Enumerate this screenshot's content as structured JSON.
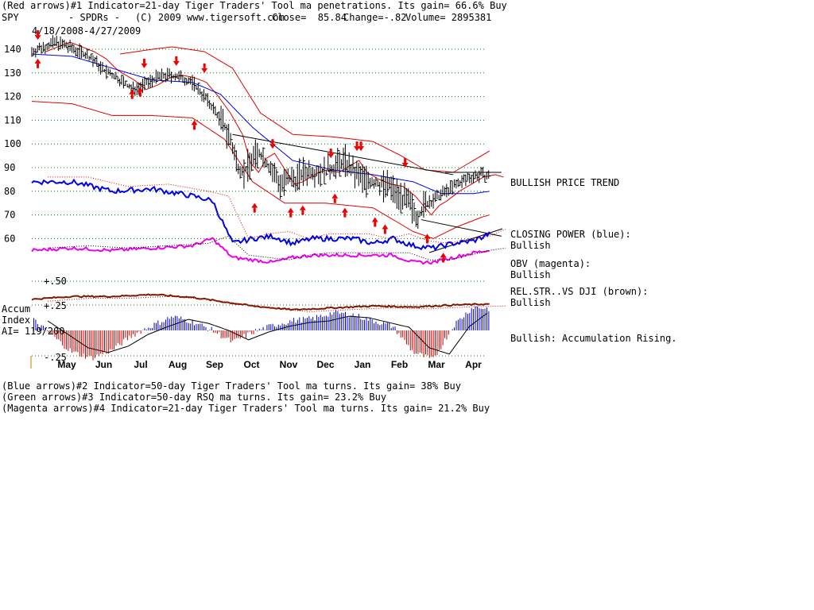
{
  "header": {
    "line1": "(Red arrows)#1 Indicator=21-day Tiger Traders' Tool ma penetrations. Its gain= 66.6% Buy",
    "ticker": "SPY",
    "name": "- SPDRs -",
    "copyright": "(C) 2009 www.tigersoft.com",
    "close": "Close=  85.84",
    "change": "Change=-.82",
    "volume": "Volume= 2895381",
    "date_range": "4/18/2008-4/27/2009"
  },
  "footer": [
    "(Blue arrows)#2 Indicator=50-day Tiger Traders' Tool ma turns. Its gain= 38% Buy",
    "(Green arrows)#3 Indicator=50-day RSQ ma turns. Its gain= 23.2% Buy",
    "(Magenta arrows)#4 Indicator=21-day Tiger Traders' Tool ma turns. Its gain= 21.2% Buy"
  ],
  "right_labels": {
    "trend": "BULLISH PRICE TREND",
    "cp_title": "CLOSING POWER (blue):",
    "cp_value": "Bullish",
    "obv_title": "OBV (magenta):",
    "obv_value": "Bullish",
    "rs_title": "REL.STR..VS DJI (brown):",
    "rs_value": "Bullish",
    "accum": "Bullish: Accumulation Rising."
  },
  "accum_label": {
    "line1": "Accum",
    "line2": "Index",
    "line3": "AI= 119/200"
  },
  "colors": {
    "price_bars": "#000000",
    "bands": "#dd0000",
    "ma50": "#0000dd",
    "closing_power": "#0000ee",
    "obv": "#ee00ee",
    "rel_strength": "#7a1a00",
    "accum_pos": "#0000cc",
    "accum_neg": "#cc0000",
    "grid": "#008000",
    "arrows": "#ee0000"
  },
  "chart_data": {
    "type": "line",
    "y_ticks": [
      140,
      130,
      120,
      110,
      100,
      90,
      80,
      70,
      60
    ],
    "y_range": [
      55,
      145
    ],
    "grid": true,
    "months": [
      "May",
      "Jun",
      "Jul",
      "Aug",
      "Sep",
      "Oct",
      "Nov",
      "Dec",
      "Jan",
      "Feb",
      "Mar",
      "Apr"
    ],
    "accum_ticks": [
      "+.50",
      "+.25",
      "-.25"
    ],
    "close_series": [
      {
        "m": 0.0,
        "v": 139
      },
      {
        "m": 0.3,
        "v": 141
      },
      {
        "m": 0.6,
        "v": 143
      },
      {
        "m": 0.9,
        "v": 141
      },
      {
        "m": 1.2,
        "v": 139
      },
      {
        "m": 1.5,
        "v": 136
      },
      {
        "m": 1.8,
        "v": 131
      },
      {
        "m": 2.2,
        "v": 127
      },
      {
        "m": 2.5,
        "v": 123
      },
      {
        "m": 2.8,
        "v": 125
      },
      {
        "m": 3.1,
        "v": 128
      },
      {
        "m": 3.4,
        "v": 129
      },
      {
        "m": 3.7,
        "v": 128
      },
      {
        "m": 4.0,
        "v": 126
      },
      {
        "m": 4.3,
        "v": 120
      },
      {
        "m": 4.6,
        "v": 113
      },
      {
        "m": 4.9,
        "v": 104
      },
      {
        "m": 5.1,
        "v": 92
      },
      {
        "m": 5.3,
        "v": 88
      },
      {
        "m": 5.5,
        "v": 94
      },
      {
        "m": 5.7,
        "v": 96
      },
      {
        "m": 6.0,
        "v": 88
      },
      {
        "m": 6.2,
        "v": 83
      },
      {
        "m": 6.4,
        "v": 84
      },
      {
        "m": 6.6,
        "v": 86
      },
      {
        "m": 6.8,
        "v": 88
      },
      {
        "m": 7.0,
        "v": 89
      },
      {
        "m": 7.3,
        "v": 88
      },
      {
        "m": 7.6,
        "v": 91
      },
      {
        "m": 7.8,
        "v": 93
      },
      {
        "m": 8.0,
        "v": 88
      },
      {
        "m": 8.3,
        "v": 85
      },
      {
        "m": 8.6,
        "v": 83
      },
      {
        "m": 8.9,
        "v": 82
      },
      {
        "m": 9.2,
        "v": 78
      },
      {
        "m": 9.4,
        "v": 74
      },
      {
        "m": 9.6,
        "v": 70
      },
      {
        "m": 9.8,
        "v": 74
      },
      {
        "m": 10.0,
        "v": 76
      },
      {
        "m": 10.3,
        "v": 80
      },
      {
        "m": 10.6,
        "v": 83
      },
      {
        "m": 10.9,
        "v": 86
      },
      {
        "m": 11.2,
        "v": 87
      },
      {
        "m": 11.4,
        "v": 86
      }
    ],
    "ma50": [
      {
        "m": 0.0,
        "v": 138
      },
      {
        "m": 1.0,
        "v": 137
      },
      {
        "m": 2.0,
        "v": 132
      },
      {
        "m": 3.0,
        "v": 127
      },
      {
        "m": 4.0,
        "v": 126
      },
      {
        "m": 4.7,
        "v": 121
      },
      {
        "m": 5.5,
        "v": 107
      },
      {
        "m": 6.5,
        "v": 93
      },
      {
        "m": 7.5,
        "v": 89
      },
      {
        "m": 8.5,
        "v": 87
      },
      {
        "m": 9.5,
        "v": 84
      },
      {
        "m": 10.2,
        "v": 79
      },
      {
        "m": 11.0,
        "v": 79
      },
      {
        "m": 11.4,
        "v": 80
      }
    ],
    "upper_band": [
      {
        "m": 2.2,
        "v": 138
      },
      {
        "m": 3.0,
        "v": 140
      },
      {
        "m": 3.5,
        "v": 141
      },
      {
        "m": 4.3,
        "v": 139
      },
      {
        "m": 5.0,
        "v": 132
      },
      {
        "m": 5.7,
        "v": 113
      },
      {
        "m": 6.5,
        "v": 104
      },
      {
        "m": 7.5,
        "v": 103
      },
      {
        "m": 8.5,
        "v": 101
      },
      {
        "m": 9.2,
        "v": 95
      },
      {
        "m": 9.8,
        "v": 89
      },
      {
        "m": 10.5,
        "v": 88
      },
      {
        "m": 11.0,
        "v": 93
      },
      {
        "m": 11.4,
        "v": 97
      }
    ],
    "lower_band": [
      {
        "m": 0.0,
        "v": 118
      },
      {
        "m": 1.0,
        "v": 117
      },
      {
        "m": 2.0,
        "v": 112
      },
      {
        "m": 3.0,
        "v": 112
      },
      {
        "m": 4.0,
        "v": 111
      },
      {
        "m": 4.8,
        "v": 102
      },
      {
        "m": 5.5,
        "v": 84
      },
      {
        "m": 6.3,
        "v": 75
      },
      {
        "m": 7.3,
        "v": 75
      },
      {
        "m": 8.5,
        "v": 73
      },
      {
        "m": 9.5,
        "v": 63
      },
      {
        "m": 10.0,
        "v": 60
      },
      {
        "m": 10.6,
        "v": 65
      },
      {
        "m": 11.2,
        "v": 69
      },
      {
        "m": 11.4,
        "v": 70
      }
    ],
    "trendline": [
      {
        "m": 5.0,
        "v": 104
      },
      {
        "m": 10.5,
        "v": 87
      }
    ],
    "support_line": [
      {
        "m": 9.7,
        "v": 68
      },
      {
        "m": 11.7,
        "v": 61
      }
    ],
    "resistance_line": [
      {
        "m": 10.3,
        "v": 88
      },
      {
        "m": 11.7,
        "v": 88
      }
    ],
    "closing_power": [
      {
        "m": 0.0,
        "v": 84
      },
      {
        "m": 1.0,
        "v": 84
      },
      {
        "m": 2.0,
        "v": 80
      },
      {
        "m": 3.0,
        "v": 81
      },
      {
        "m": 4.0,
        "v": 78
      },
      {
        "m": 4.5,
        "v": 76
      },
      {
        "m": 5.0,
        "v": 58
      },
      {
        "m": 5.5,
        "v": 60
      },
      {
        "m": 6.0,
        "v": 61
      },
      {
        "m": 6.5,
        "v": 58
      },
      {
        "m": 7.0,
        "v": 60
      },
      {
        "m": 7.5,
        "v": 60
      },
      {
        "m": 8.0,
        "v": 60
      },
      {
        "m": 8.5,
        "v": 58
      },
      {
        "m": 9.0,
        "v": 60
      },
      {
        "m": 9.5,
        "v": 57
      },
      {
        "m": 10.0,
        "v": 56
      },
      {
        "m": 10.5,
        "v": 58
      },
      {
        "m": 11.0,
        "v": 59
      },
      {
        "m": 11.4,
        "v": 62
      }
    ],
    "obv": [
      {
        "m": 0.0,
        "v": 55
      },
      {
        "m": 1.0,
        "v": 56
      },
      {
        "m": 2.0,
        "v": 55
      },
      {
        "m": 3.0,
        "v": 56
      },
      {
        "m": 4.0,
        "v": 57
      },
      {
        "m": 4.5,
        "v": 60
      },
      {
        "m": 5.0,
        "v": 52
      },
      {
        "m": 5.5,
        "v": 51
      },
      {
        "m": 6.0,
        "v": 50
      },
      {
        "m": 6.5,
        "v": 52
      },
      {
        "m": 7.0,
        "v": 53
      },
      {
        "m": 7.5,
        "v": 53
      },
      {
        "m": 8.0,
        "v": 53
      },
      {
        "m": 8.5,
        "v": 53
      },
      {
        "m": 9.0,
        "v": 53
      },
      {
        "m": 9.5,
        "v": 50
      },
      {
        "m": 10.0,
        "v": 50
      },
      {
        "m": 10.5,
        "v": 52
      },
      {
        "m": 11.0,
        "v": 54
      },
      {
        "m": 11.4,
        "v": 55
      }
    ],
    "rel_strength": [
      {
        "m": 0.0,
        "v": 0.31
      },
      {
        "m": 1.0,
        "v": 0.34
      },
      {
        "m": 2.0,
        "v": 0.34
      },
      {
        "m": 3.0,
        "v": 0.36
      },
      {
        "m": 4.0,
        "v": 0.33
      },
      {
        "m": 4.5,
        "v": 0.3
      },
      {
        "m": 5.5,
        "v": 0.24
      },
      {
        "m": 6.5,
        "v": 0.2
      },
      {
        "m": 7.5,
        "v": 0.22
      },
      {
        "m": 8.5,
        "v": 0.24
      },
      {
        "m": 9.5,
        "v": 0.23
      },
      {
        "m": 10.5,
        "v": 0.25
      },
      {
        "m": 11.4,
        "v": 0.26
      }
    ],
    "accum_index": [
      {
        "m": 0.0,
        "v": 0.12
      },
      {
        "m": 0.5,
        "v": -0.05
      },
      {
        "m": 1.0,
        "v": -0.22
      },
      {
        "m": 1.5,
        "v": -0.28
      },
      {
        "m": 2.0,
        "v": -0.2
      },
      {
        "m": 2.5,
        "v": -0.05
      },
      {
        "m": 3.0,
        "v": 0.05
      },
      {
        "m": 3.5,
        "v": 0.14
      },
      {
        "m": 4.0,
        "v": 0.09
      },
      {
        "m": 4.5,
        "v": 0.0
      },
      {
        "m": 5.0,
        "v": -0.12
      },
      {
        "m": 5.5,
        "v": -0.02
      },
      {
        "m": 6.0,
        "v": 0.05
      },
      {
        "m": 6.5,
        "v": 0.1
      },
      {
        "m": 7.0,
        "v": 0.12
      },
      {
        "m": 7.5,
        "v": 0.18
      },
      {
        "m": 8.0,
        "v": 0.16
      },
      {
        "m": 8.5,
        "v": 0.1
      },
      {
        "m": 9.0,
        "v": 0.04
      },
      {
        "m": 9.5,
        "v": -0.22
      },
      {
        "m": 10.0,
        "v": -0.3
      },
      {
        "m": 10.5,
        "v": 0.05
      },
      {
        "m": 11.0,
        "v": 0.24
      },
      {
        "m": 11.4,
        "v": 0.22
      }
    ],
    "up_arrows": [
      {
        "m": 0.15,
        "v": 134
      },
      {
        "m": 2.5,
        "v": 121
      },
      {
        "m": 2.7,
        "v": 122
      },
      {
        "m": 4.05,
        "v": 108
      },
      {
        "m": 5.55,
        "v": 73
      },
      {
        "m": 6.45,
        "v": 71
      },
      {
        "m": 6.75,
        "v": 72
      },
      {
        "m": 7.55,
        "v": 77
      },
      {
        "m": 7.8,
        "v": 71
      },
      {
        "m": 8.55,
        "v": 67
      },
      {
        "m": 8.8,
        "v": 64
      },
      {
        "m": 9.85,
        "v": 60
      },
      {
        "m": 10.25,
        "v": 52
      }
    ],
    "down_arrows": [
      {
        "m": 0.15,
        "v": 146
      },
      {
        "m": 2.8,
        "v": 134
      },
      {
        "m": 3.6,
        "v": 135
      },
      {
        "m": 4.3,
        "v": 132
      },
      {
        "m": 6.0,
        "v": 100
      },
      {
        "m": 7.45,
        "v": 96
      },
      {
        "m": 8.1,
        "v": 99
      },
      {
        "m": 8.2,
        "v": 99
      },
      {
        "m": 9.3,
        "v": 92
      }
    ]
  }
}
